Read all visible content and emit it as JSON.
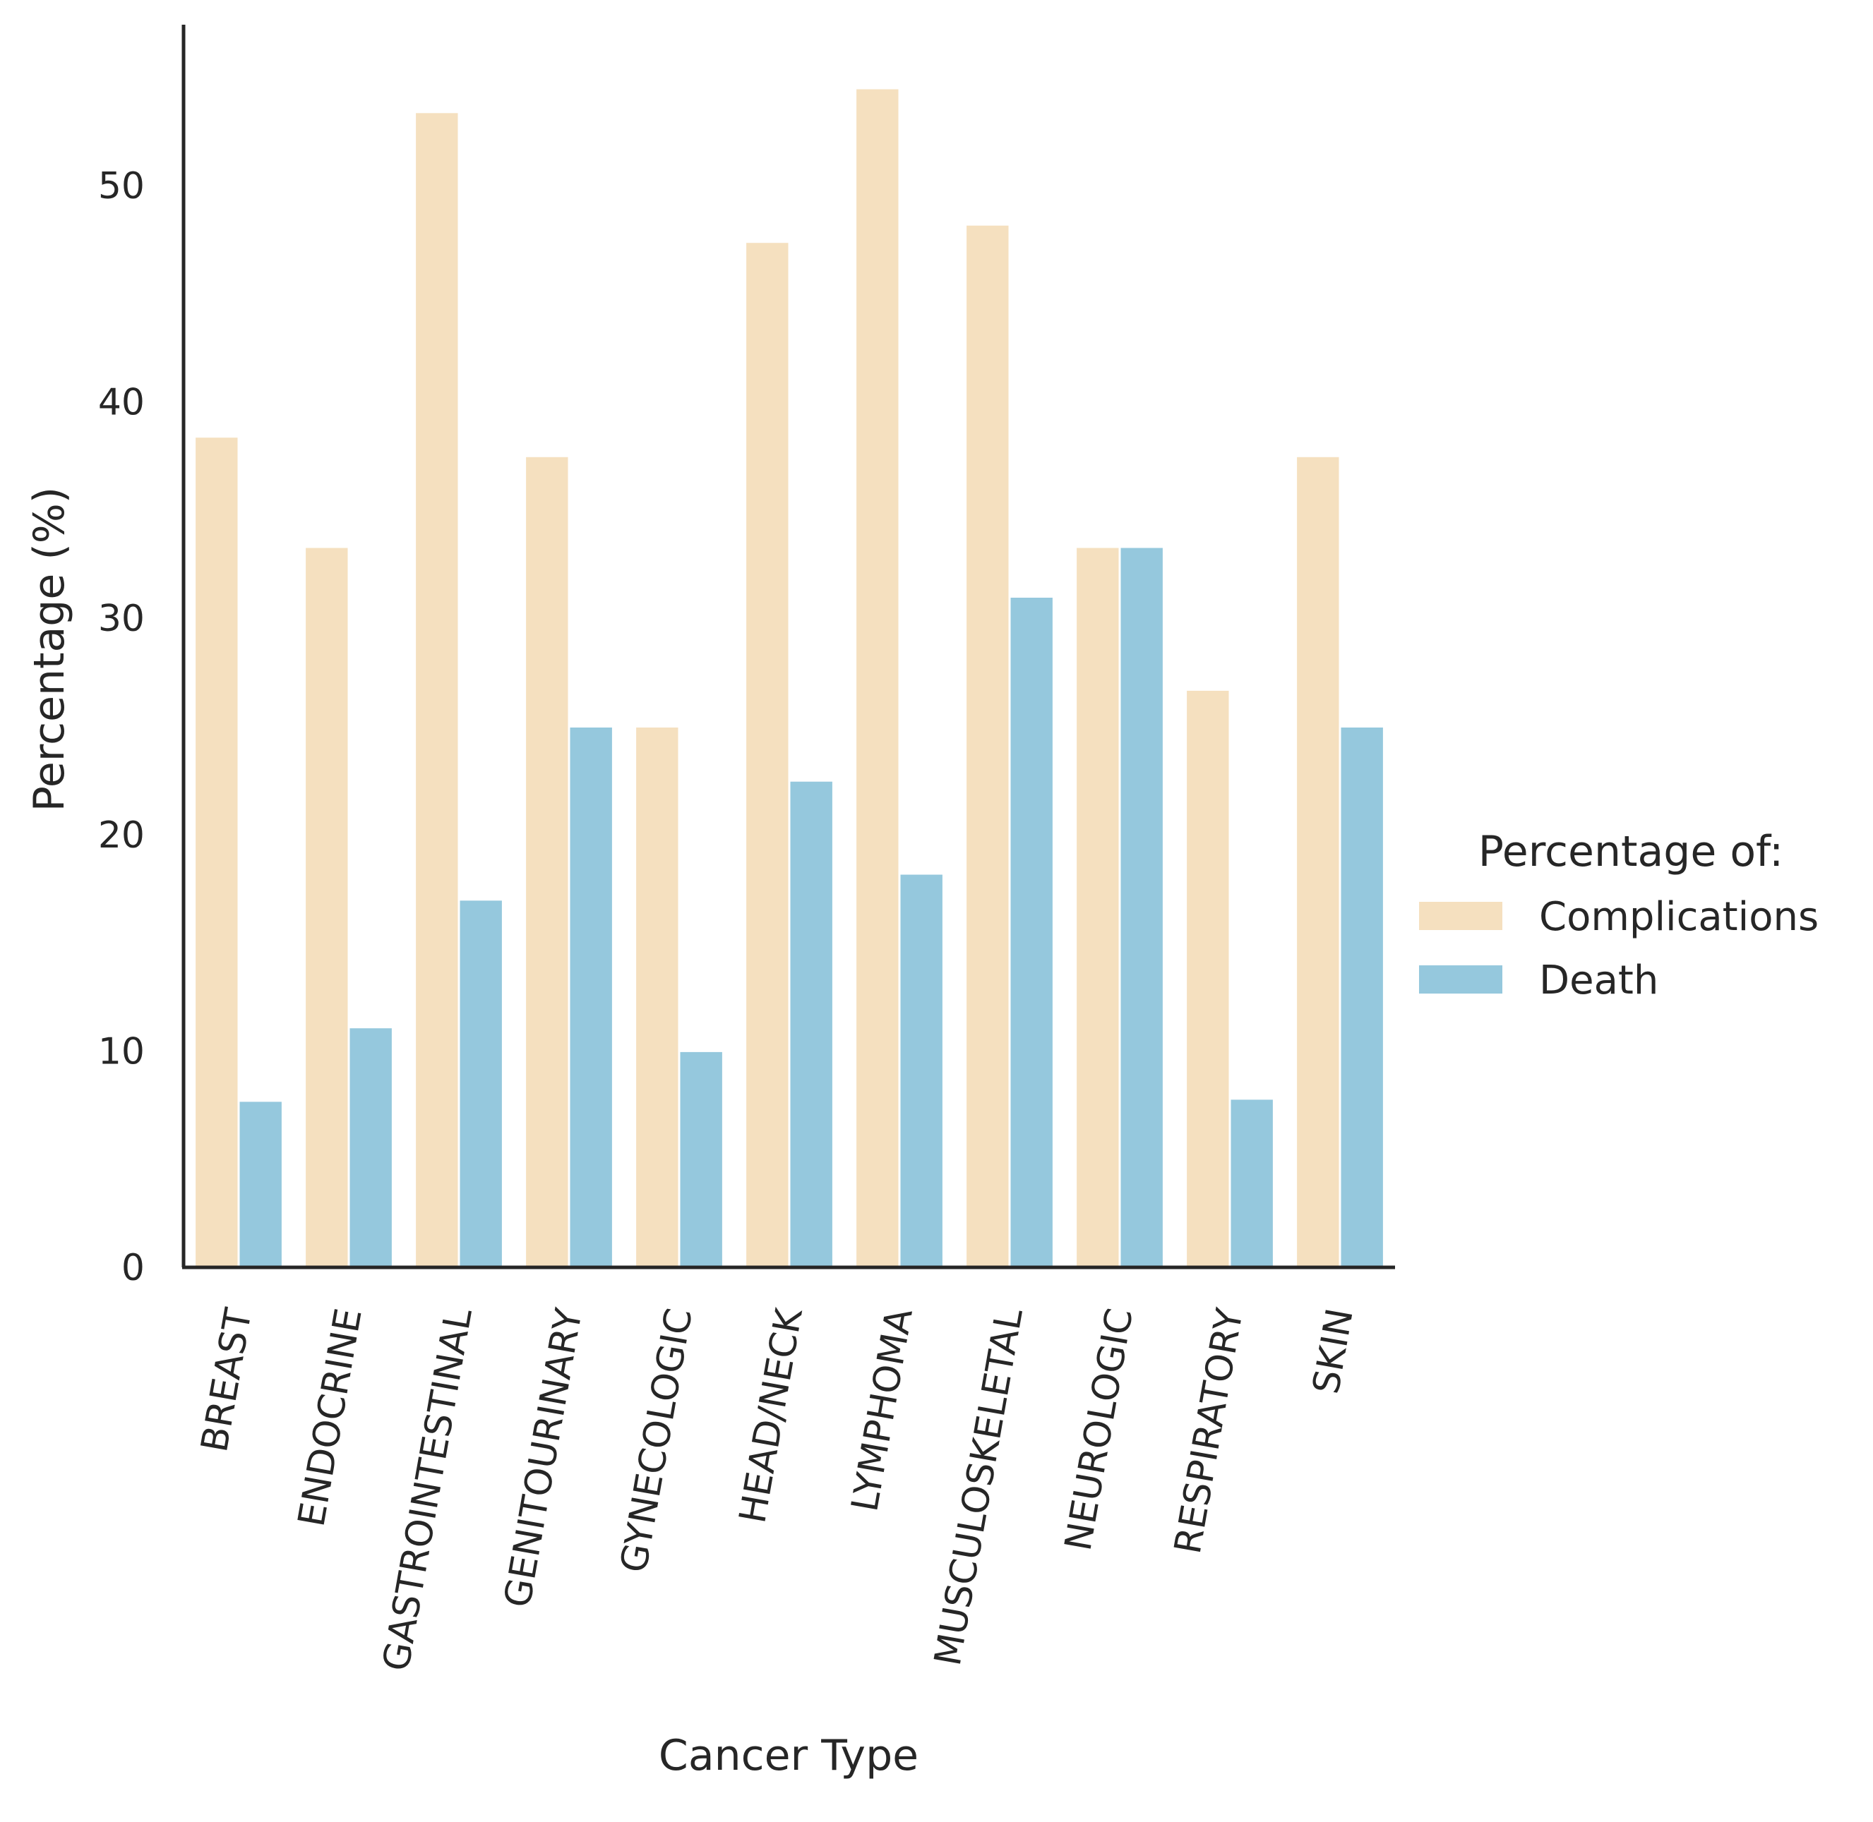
{
  "chart_data": {
    "type": "bar",
    "xlabel": "Cancer Type",
    "ylabel": "Percentage (%)",
    "ylim": [
      0,
      57.3
    ],
    "yticks": [
      0,
      10,
      20,
      30,
      40,
      50
    ],
    "grid": false,
    "legend": {
      "title": "Percentage of:",
      "position": "right"
    },
    "categories": [
      "BREAST",
      "ENDOCRINE",
      "GASTROINTESTINAL",
      "GENITOURINARY",
      "GYNECOLOGIC",
      "HEAD/NECK",
      "LYMPHOMA",
      "MUSCULOSKELETAL",
      "NEUROLOGIC",
      "RESPIRATORY",
      "SKIN"
    ],
    "series": [
      {
        "name": "Complications",
        "color": "#f5e0bf",
        "values": [
          38.4,
          33.3,
          53.4,
          37.5,
          25.0,
          47.4,
          54.5,
          48.2,
          33.3,
          26.7,
          37.5
        ]
      },
      {
        "name": "Death",
        "color": "#95c8dd",
        "values": [
          7.7,
          11.1,
          17.0,
          25.0,
          10.0,
          22.5,
          18.2,
          31.0,
          33.3,
          7.8,
          25.0
        ]
      }
    ]
  }
}
